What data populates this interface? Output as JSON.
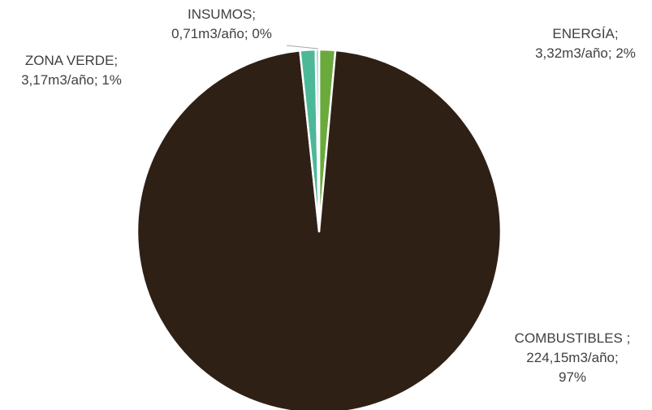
{
  "chart_data": {
    "type": "pie",
    "title": "",
    "slices": [
      {
        "name": "ENERGÍA",
        "value": 3.32,
        "unit": "m3/año",
        "percent": 2,
        "color": "#6aaa3c",
        "label_lines": [
          "ENERGÍA;",
          "3,32m3/año; 2%"
        ]
      },
      {
        "name": "COMBUSTIBLES",
        "value": 224.15,
        "unit": "m3/año",
        "percent": 97,
        "color": "#2f2016",
        "label_lines": [
          "COMBUSTIBLES ;",
          "224,15m3/año;",
          "97%"
        ]
      },
      {
        "name": "ZONA VERDE",
        "value": 3.17,
        "unit": "m3/año",
        "percent": 1,
        "color": "#4cb897",
        "label_lines": [
          "ZONA VERDE;",
          "3,17m3/año; 1%"
        ]
      },
      {
        "name": "INSUMOS",
        "value": 0.71,
        "unit": "m3/año",
        "percent": 0,
        "color": "#9fd3cf",
        "label_lines": [
          "INSUMOS;",
          "0,71m3/año; 0%"
        ]
      }
    ],
    "legend": "none",
    "slice_border_color": "#ffffff"
  }
}
